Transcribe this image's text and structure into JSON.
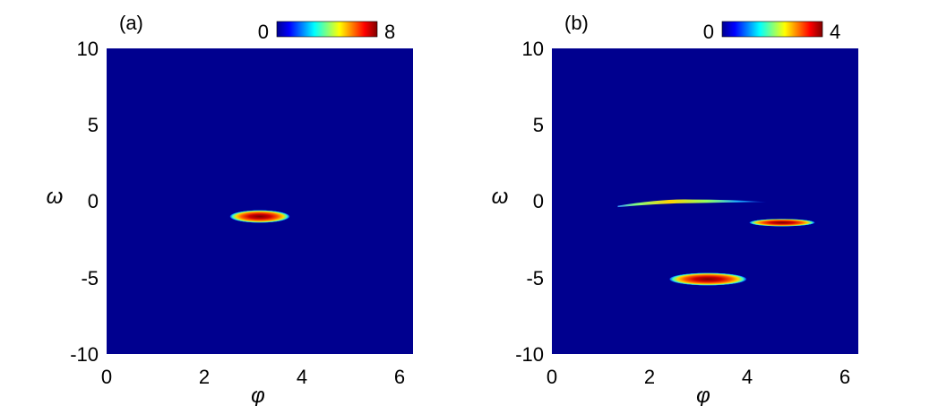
{
  "chart_data": [
    {
      "type": "heatmap",
      "panel_label": "(a)",
      "xlabel": "φ",
      "ylabel": "ω",
      "xlim": [
        0,
        6.2832
      ],
      "ylim": [
        -10,
        10
      ],
      "xticks": [
        "0",
        "2",
        "4",
        "6"
      ],
      "yticks": [
        "10",
        "5",
        "0",
        "-5",
        "-10"
      ],
      "colorbar": {
        "min_label": "0",
        "max_label": "8",
        "min": 0,
        "max": 8,
        "colormap": "jet",
        "placement": "top-right"
      },
      "background_color": "#00008f",
      "features": [
        {
          "name": "peak",
          "phi_center": 3.14,
          "omega_center": -1.0,
          "phi_halfwidth": 0.62,
          "omega_halfwidth": 0.42,
          "peak_value": 8
        }
      ]
    },
    {
      "type": "heatmap",
      "panel_label": "(b)",
      "xlabel": "φ",
      "ylabel": "ω",
      "xlim": [
        0,
        6.2832
      ],
      "ylim": [
        -10,
        10
      ],
      "xticks": [
        "0",
        "2",
        "4",
        "6"
      ],
      "yticks": [
        "10",
        "5",
        "0",
        "-5",
        "-10"
      ],
      "colorbar": {
        "min_label": "0",
        "max_label": "4",
        "min": 0,
        "max": 4,
        "colormap": "jet",
        "placement": "top-right"
      },
      "background_color": "#00008f",
      "features": [
        {
          "name": "upper-arc",
          "phi_start": 1.35,
          "phi_end": 4.4,
          "omega_start": -0.3,
          "omega_mid": 0.05,
          "omega_end": -0.05,
          "peak_value": 2.4
        },
        {
          "name": "right-peak",
          "phi_center": 4.72,
          "omega_center": -1.4,
          "phi_halfwidth": 0.68,
          "omega_halfwidth": 0.25,
          "peak_value": 4
        },
        {
          "name": "lower-peak",
          "phi_center": 3.2,
          "omega_center": -5.1,
          "phi_halfwidth": 0.8,
          "omega_halfwidth": 0.42,
          "peak_value": 4
        }
      ]
    }
  ]
}
